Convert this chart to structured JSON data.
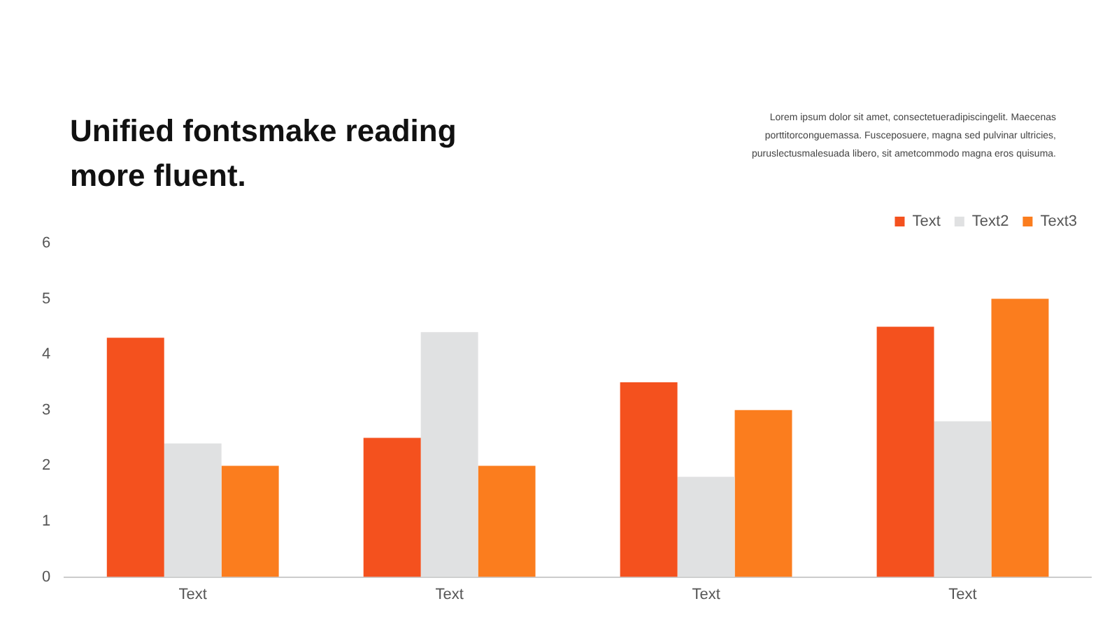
{
  "chart_data": {
    "type": "bar",
    "title": "Unified fontsmake reading more fluent.",
    "subtitle": "Lorem ipsum dolor sit amet, consectetueradipiscingelit.  Maecenas porttitorconguemassa.  Fusceposuere,  magna sed pulvinar  ultricies, puruslectusmalesuada  libero, sit ametcommodo magna  eros  quisuma.",
    "categories": [
      "Text",
      "Text",
      "Text",
      "Text"
    ],
    "series": [
      {
        "name": "Text",
        "color": "#f4511e",
        "values": [
          4.3,
          2.5,
          3.5,
          4.5
        ]
      },
      {
        "name": "Text2",
        "color": "#e0e1e2",
        "values": [
          2.4,
          4.4,
          1.8,
          2.8
        ]
      },
      {
        "name": "Text3",
        "color": "#fb7d1e",
        "values": [
          2,
          2,
          3,
          5
        ]
      }
    ],
    "ylim": [
      0,
      6
    ],
    "yticks": [
      0,
      1,
      2,
      3,
      4,
      5,
      6
    ],
    "grid": false,
    "legend": "top right"
  }
}
